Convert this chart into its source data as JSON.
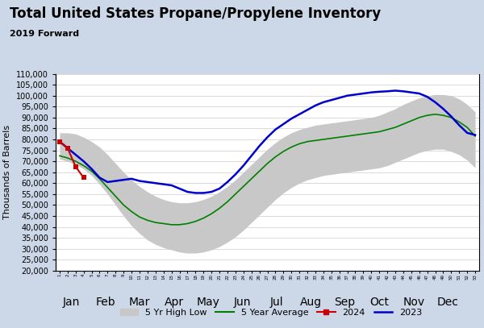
{
  "title": "Total United States Propane/Propylene Inventory",
  "subtitle": "2019 Forward",
  "ylabel": "Thousands of Barrels",
  "background_color": "#ccd8e8",
  "plot_bg_color": "#ffffff",
  "title_fontsize": 12,
  "subtitle_fontsize": 8,
  "ylim": [
    20000,
    110000
  ],
  "yticks": [
    20000,
    25000,
    30000,
    35000,
    40000,
    45000,
    50000,
    55000,
    60000,
    65000,
    70000,
    75000,
    80000,
    85000,
    90000,
    95000,
    100000,
    105000,
    110000
  ],
  "avg_color": "#008000",
  "line2023_color": "#0000cc",
  "line2024_color": "#cc0000",
  "band_color": "#c8c8c8",
  "num_weeks": 53,
  "five_yr_high": [
    83000,
    83000,
    82500,
    81000,
    79000,
    76500,
    73000,
    69000,
    65000,
    61500,
    58500,
    56000,
    54000,
    52500,
    51500,
    51000,
    51000,
    51500,
    52500,
    54000,
    56000,
    58500,
    61500,
    65000,
    68500,
    72000,
    75500,
    78500,
    81000,
    83000,
    84500,
    85500,
    86500,
    87000,
    87500,
    88000,
    88500,
    89000,
    89500,
    90000,
    91000,
    92500,
    94000,
    96000,
    97500,
    99000,
    100000,
    100500,
    100500,
    100000,
    98500,
    96000,
    92500
  ],
  "five_yr_low": [
    71000,
    70000,
    68500,
    66500,
    63500,
    59500,
    55000,
    50000,
    45000,
    40500,
    37000,
    34000,
    32000,
    30500,
    29500,
    28500,
    28000,
    28000,
    28500,
    29500,
    31000,
    33000,
    35500,
    38500,
    42000,
    45500,
    49000,
    52500,
    55500,
    58000,
    60000,
    61500,
    62500,
    63500,
    64000,
    64500,
    65000,
    65500,
    66000,
    66500,
    67000,
    68000,
    69500,
    71000,
    72500,
    74000,
    75000,
    75500,
    75500,
    74500,
    73000,
    70500,
    67000
  ],
  "five_yr_avg": [
    72500,
    71500,
    70000,
    68000,
    65500,
    62000,
    58000,
    54000,
    50000,
    47000,
    44500,
    43000,
    42000,
    41500,
    41000,
    41000,
    41500,
    42500,
    44000,
    46000,
    48500,
    51500,
    55000,
    58500,
    62000,
    65500,
    69000,
    72000,
    74500,
    76500,
    78000,
    79000,
    79500,
    80000,
    80500,
    81000,
    81500,
    82000,
    82500,
    83000,
    83500,
    84500,
    85500,
    87000,
    88500,
    90000,
    91000,
    91500,
    91000,
    90000,
    88000,
    85500,
    81500
  ],
  "line2023": [
    79000,
    76000,
    73000,
    70000,
    66500,
    62500,
    60500,
    61000,
    61500,
    62000,
    61000,
    60500,
    60000,
    59500,
    59000,
    57500,
    56000,
    55500,
    55500,
    56000,
    57500,
    60500,
    64000,
    68000,
    72500,
    77000,
    81000,
    84500,
    87000,
    89500,
    91500,
    93500,
    95500,
    97000,
    98000,
    99000,
    100000,
    100500,
    101000,
    101500,
    101800,
    102000,
    102300,
    102000,
    101500,
    101000,
    99500,
    97000,
    94000,
    90500,
    86500,
    83000,
    82000
  ],
  "line2024": [
    79000,
    76000,
    67500,
    62500,
    null,
    null,
    null,
    null,
    null,
    null,
    null,
    null,
    null,
    null,
    null,
    null,
    null,
    null,
    null,
    null,
    null,
    null,
    null,
    null,
    null,
    null,
    null,
    null,
    null,
    null,
    null,
    null,
    null,
    null,
    null,
    null,
    null,
    null,
    null,
    null,
    null,
    null,
    null,
    null,
    null,
    null,
    null,
    null,
    null,
    null,
    null,
    null,
    null
  ],
  "month_names": [
    "Jan",
    "Feb",
    "Mar",
    "Apr",
    "May",
    "Jun",
    "Jul",
    "Aug",
    "Sep",
    "Oct",
    "Nov",
    "Dec"
  ],
  "month_x_positions": [
    1.5,
    5.8,
    10.0,
    14.3,
    18.6,
    22.9,
    27.2,
    31.4,
    35.7,
    40.0,
    44.3,
    48.6
  ],
  "legend_labels": [
    "5 Yr High Low",
    "5 Year Average",
    "2024",
    "2023"
  ]
}
